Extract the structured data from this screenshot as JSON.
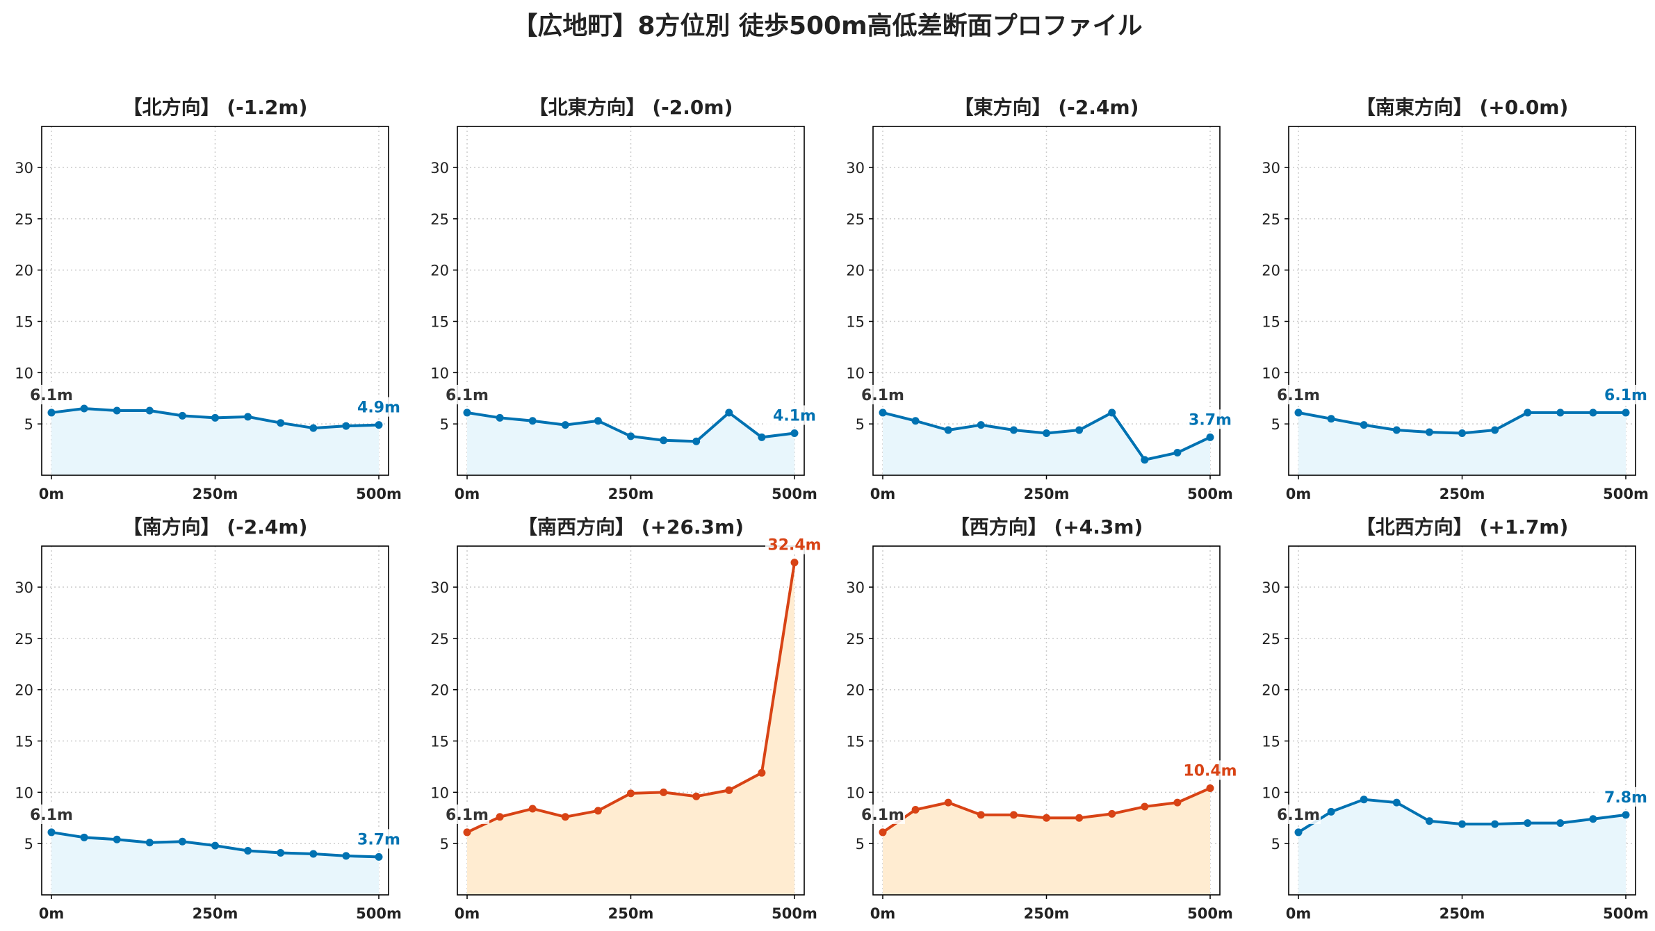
{
  "title": "【広地町】8方位別 徒歩500m高低差断面プロファイル",
  "colors": {
    "flat_line": "#0072b2",
    "flat_fill": "#e8f6fc",
    "up_line": "#d84315",
    "up_fill": "#ffecd1",
    "start_label": "#333333",
    "grid": "#cccccc"
  },
  "chart_data": [
    {
      "type": "area",
      "title": "【北方向】 (-1.2m)",
      "x": [
        0,
        50,
        100,
        150,
        200,
        250,
        300,
        350,
        400,
        450,
        500
      ],
      "xticks": [
        "0m",
        "250m",
        "500m"
      ],
      "y": [
        6.1,
        6.5,
        6.3,
        6.3,
        5.8,
        5.6,
        5.7,
        5.1,
        4.6,
        4.8,
        4.9
      ],
      "ylim": [
        0,
        34
      ],
      "yticks": [
        5,
        10,
        15,
        20,
        25,
        30
      ],
      "start_label": "6.1m",
      "end_label": "4.9m",
      "trend": "flat",
      "grid": true
    },
    {
      "type": "area",
      "title": "【北東方向】 (-2.0m)",
      "x": [
        0,
        50,
        100,
        150,
        200,
        250,
        300,
        350,
        400,
        450,
        500
      ],
      "xticks": [
        "0m",
        "250m",
        "500m"
      ],
      "y": [
        6.1,
        5.6,
        5.3,
        4.9,
        5.3,
        3.8,
        3.4,
        3.3,
        6.1,
        3.7,
        4.1
      ],
      "ylim": [
        0,
        34
      ],
      "yticks": [
        5,
        10,
        15,
        20,
        25,
        30
      ],
      "start_label": "6.1m",
      "end_label": "4.1m",
      "trend": "flat",
      "grid": true
    },
    {
      "type": "area",
      "title": "【東方向】 (-2.4m)",
      "x": [
        0,
        50,
        100,
        150,
        200,
        250,
        300,
        350,
        400,
        450,
        500
      ],
      "xticks": [
        "0m",
        "250m",
        "500m"
      ],
      "y": [
        6.1,
        5.3,
        4.4,
        4.9,
        4.4,
        4.1,
        4.4,
        6.1,
        1.5,
        2.2,
        3.7
      ],
      "ylim": [
        0,
        34
      ],
      "yticks": [
        5,
        10,
        15,
        20,
        25,
        30
      ],
      "start_label": "6.1m",
      "end_label": "3.7m",
      "trend": "flat",
      "grid": true
    },
    {
      "type": "area",
      "title": "【南東方向】 (+0.0m)",
      "x": [
        0,
        50,
        100,
        150,
        200,
        250,
        300,
        350,
        400,
        450,
        500
      ],
      "xticks": [
        "0m",
        "250m",
        "500m"
      ],
      "y": [
        6.1,
        5.5,
        4.9,
        4.4,
        4.2,
        4.1,
        4.4,
        6.1,
        6.1,
        6.1,
        6.1
      ],
      "ylim": [
        0,
        34
      ],
      "yticks": [
        5,
        10,
        15,
        20,
        25,
        30
      ],
      "start_label": "6.1m",
      "end_label": "6.1m",
      "trend": "flat",
      "grid": true
    },
    {
      "type": "area",
      "title": "【南方向】 (-2.4m)",
      "x": [
        0,
        50,
        100,
        150,
        200,
        250,
        300,
        350,
        400,
        450,
        500
      ],
      "xticks": [
        "0m",
        "250m",
        "500m"
      ],
      "y": [
        6.1,
        5.6,
        5.4,
        5.1,
        5.2,
        4.8,
        4.3,
        4.1,
        4.0,
        3.8,
        3.7
      ],
      "ylim": [
        0,
        34
      ],
      "yticks": [
        5,
        10,
        15,
        20,
        25,
        30
      ],
      "start_label": "6.1m",
      "end_label": "3.7m",
      "trend": "flat",
      "grid": true
    },
    {
      "type": "area",
      "title": "【南西方向】 (+26.3m)",
      "x": [
        0,
        50,
        100,
        150,
        200,
        250,
        300,
        350,
        400,
        450,
        500
      ],
      "xticks": [
        "0m",
        "250m",
        "500m"
      ],
      "y": [
        6.1,
        7.6,
        8.4,
        7.6,
        8.2,
        9.9,
        10.0,
        9.6,
        10.2,
        11.9,
        32.4
      ],
      "ylim": [
        0,
        34
      ],
      "yticks": [
        5,
        10,
        15,
        20,
        25,
        30
      ],
      "start_label": "6.1m",
      "end_label": "32.4m",
      "trend": "up",
      "grid": true
    },
    {
      "type": "area",
      "title": "【西方向】 (+4.3m)",
      "x": [
        0,
        50,
        100,
        150,
        200,
        250,
        300,
        350,
        400,
        450,
        500
      ],
      "xticks": [
        "0m",
        "250m",
        "500m"
      ],
      "y": [
        6.1,
        8.3,
        9.0,
        7.8,
        7.8,
        7.5,
        7.5,
        7.9,
        8.6,
        9.0,
        10.4
      ],
      "ylim": [
        0,
        34
      ],
      "yticks": [
        5,
        10,
        15,
        20,
        25,
        30
      ],
      "start_label": "6.1m",
      "end_label": "10.4m",
      "trend": "up",
      "grid": true
    },
    {
      "type": "area",
      "title": "【北西方向】 (+1.7m)",
      "x": [
        0,
        50,
        100,
        150,
        200,
        250,
        300,
        350,
        400,
        450,
        500
      ],
      "xticks": [
        "0m",
        "250m",
        "500m"
      ],
      "y": [
        6.1,
        8.1,
        9.3,
        9.0,
        7.2,
        6.9,
        6.9,
        7.0,
        7.0,
        7.4,
        7.8
      ],
      "ylim": [
        0,
        34
      ],
      "yticks": [
        5,
        10,
        15,
        20,
        25,
        30
      ],
      "start_label": "6.1m",
      "end_label": "7.8m",
      "trend": "flat",
      "grid": true
    }
  ]
}
